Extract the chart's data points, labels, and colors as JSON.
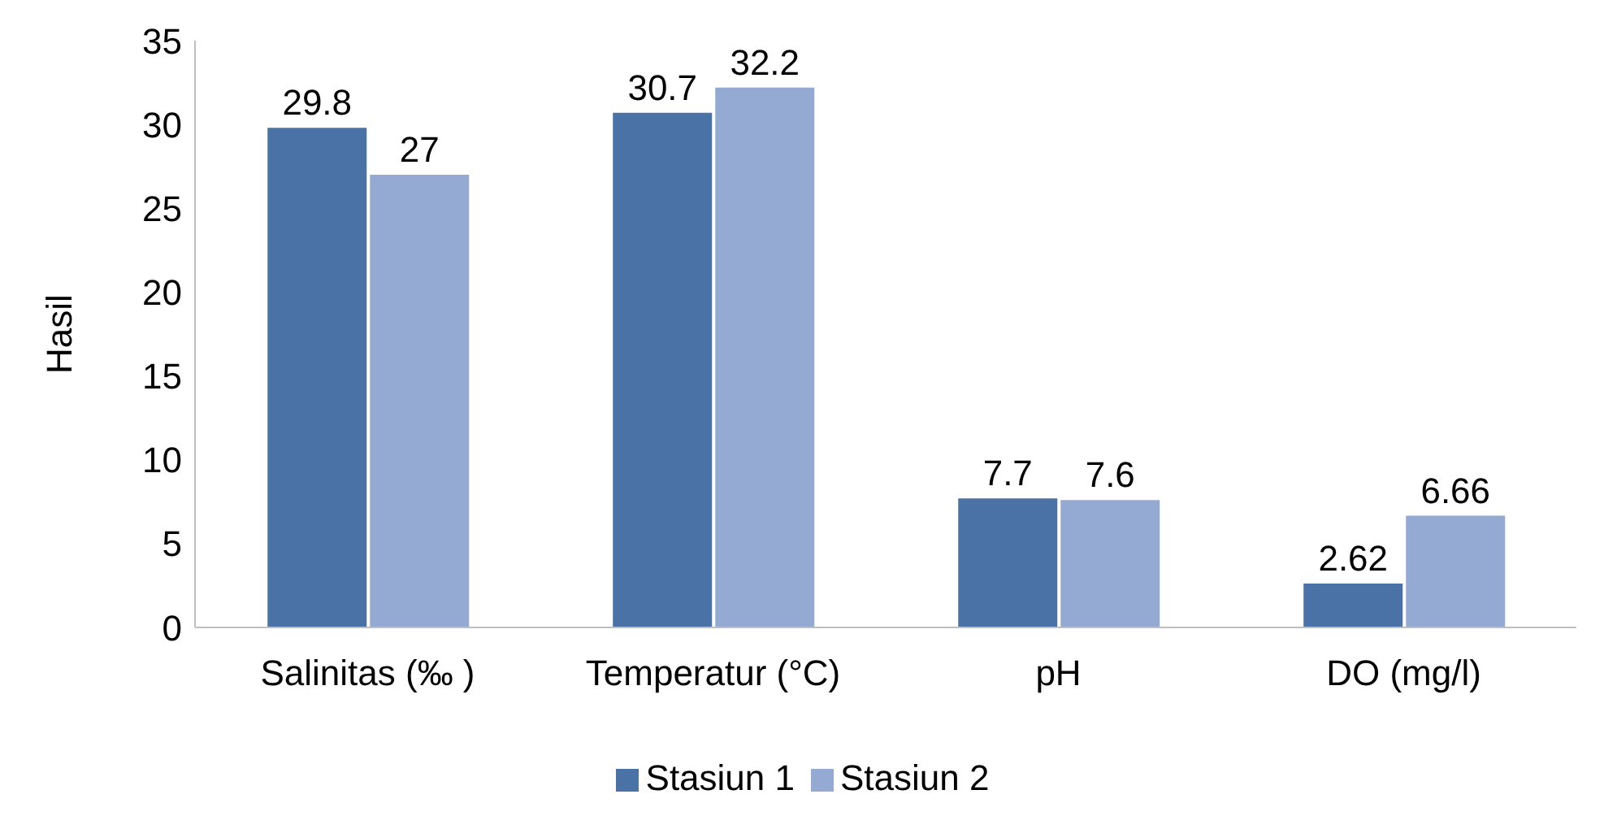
{
  "chart_data": {
    "type": "bar",
    "ylabel": "Hasil",
    "categories": [
      "Salinitas (‰ )",
      "Temperatur (°C)",
      "pH",
      "DO (mg/l)"
    ],
    "series": [
      {
        "name": "Stasiun 1",
        "color": "#4a72a6",
        "values": [
          29.8,
          30.7,
          7.7,
          2.62
        ]
      },
      {
        "name": "Stasiun 2",
        "color": "#95aad3",
        "values": [
          27,
          32.2,
          7.6,
          6.66
        ]
      }
    ],
    "ylim": [
      0,
      35
    ],
    "yticks": [
      0,
      5,
      10,
      15,
      20,
      25,
      30,
      35
    ],
    "grid": false,
    "legend": "bottom",
    "data_labels": true
  }
}
